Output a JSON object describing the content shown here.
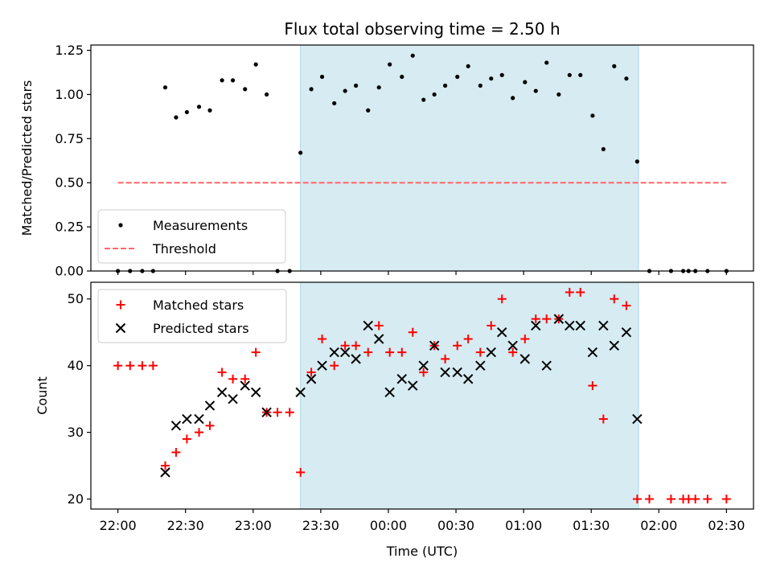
{
  "chart_data": {
    "title": "Flux total observing time = 2.50 h",
    "xlabel": "Time (UTC)",
    "x_units": "minutes after 22:00 UTC",
    "x_range": [
      -20,
      470
    ],
    "x_ticks": [
      {
        "value": 0,
        "label": "22:00"
      },
      {
        "value": 50,
        "label": "22:30"
      },
      {
        "value": 100,
        "label": "23:00"
      },
      {
        "value": 150,
        "label": "23:30"
      },
      {
        "value": 200,
        "label": "00:00"
      },
      {
        "value": 250,
        "label": "00:30"
      },
      {
        "value": 300,
        "label": "01:00"
      },
      {
        "value": 350,
        "label": "01:30"
      },
      {
        "value": 400,
        "label": "02:00"
      },
      {
        "value": 450,
        "label": "02:30"
      }
    ],
    "highlight_span": {
      "x": [
        135,
        385
      ],
      "color": "#add8e6"
    },
    "top": {
      "type": "scatter",
      "ylabel": "Matched/Predicted stars",
      "ylim": [
        0,
        1.28
      ],
      "yticks": [
        0.0,
        0.25,
        0.5,
        0.75,
        1.0,
        1.25
      ],
      "ytick_labels": [
        "0.00",
        "0.25",
        "0.50",
        "0.75",
        "1.00",
        "1.25"
      ],
      "threshold": {
        "name": "Threshold",
        "y": 0.5,
        "x": [
          0,
          450
        ],
        "color": "#ff6666"
      },
      "measurements": {
        "name": "Measurements",
        "color": "#000000",
        "points": [
          [
            0,
            0
          ],
          [
            9,
            0
          ],
          [
            18,
            0
          ],
          [
            26,
            0
          ],
          [
            35,
            1.04
          ],
          [
            43,
            0.87
          ],
          [
            51,
            0.9
          ],
          [
            60,
            0.93
          ],
          [
            68,
            0.91
          ],
          [
            77,
            1.08
          ],
          [
            85,
            1.08
          ],
          [
            94,
            1.03
          ],
          [
            102,
            1.17
          ],
          [
            110,
            1.0
          ],
          [
            118,
            0
          ],
          [
            127,
            0
          ],
          [
            135,
            0.67
          ],
          [
            143,
            1.03
          ],
          [
            151,
            1.1
          ],
          [
            160,
            0.95
          ],
          [
            168,
            1.02
          ],
          [
            176,
            1.05
          ],
          [
            185,
            0.91
          ],
          [
            193,
            1.04
          ],
          [
            201,
            1.17
          ],
          [
            210,
            1.1
          ],
          [
            218,
            1.22
          ],
          [
            226,
            0.97
          ],
          [
            234,
            1.0
          ],
          [
            242,
            1.05
          ],
          [
            251,
            1.1
          ],
          [
            259,
            1.16
          ],
          [
            268,
            1.05
          ],
          [
            276,
            1.09
          ],
          [
            284,
            1.11
          ],
          [
            292,
            0.98
          ],
          [
            301,
            1.07
          ],
          [
            309,
            1.02
          ],
          [
            317,
            1.18
          ],
          [
            326,
            1.0
          ],
          [
            334,
            1.11
          ],
          [
            342,
            1.11
          ],
          [
            351,
            0.88
          ],
          [
            359,
            0.69
          ],
          [
            367,
            1.16
          ],
          [
            376,
            1.09
          ],
          [
            384,
            0.62
          ],
          [
            393,
            0
          ],
          [
            409,
            0
          ],
          [
            418,
            0
          ],
          [
            422,
            0
          ],
          [
            427,
            0
          ],
          [
            436,
            0
          ],
          [
            450,
            0
          ]
        ]
      },
      "legend_position": "lower-left"
    },
    "bottom": {
      "type": "scatter",
      "ylabel": "Count",
      "ylim": [
        18.5,
        52.5
      ],
      "yticks": [
        20,
        30,
        40,
        50
      ],
      "ytick_labels": [
        "20",
        "30",
        "40",
        "50"
      ],
      "series": [
        {
          "name": "Matched stars",
          "marker": "plus",
          "color": "#ff0000",
          "points": [
            [
              0,
              40
            ],
            [
              9,
              40
            ],
            [
              18,
              40
            ],
            [
              26,
              40
            ],
            [
              35,
              25
            ],
            [
              43,
              27
            ],
            [
              51,
              29
            ],
            [
              60,
              30
            ],
            [
              68,
              31
            ],
            [
              77,
              39
            ],
            [
              85,
              38
            ],
            [
              94,
              38
            ],
            [
              102,
              42
            ],
            [
              110,
              33
            ],
            [
              118,
              33
            ],
            [
              127,
              33
            ],
            [
              135,
              24
            ],
            [
              143,
              39
            ],
            [
              151,
              44
            ],
            [
              160,
              40
            ],
            [
              168,
              43
            ],
            [
              176,
              43
            ],
            [
              185,
              42
            ],
            [
              193,
              46
            ],
            [
              201,
              42
            ],
            [
              210,
              42
            ],
            [
              218,
              45
            ],
            [
              226,
              39
            ],
            [
              234,
              43
            ],
            [
              242,
              41
            ],
            [
              251,
              43
            ],
            [
              259,
              44
            ],
            [
              268,
              42
            ],
            [
              276,
              46
            ],
            [
              284,
              50
            ],
            [
              292,
              42
            ],
            [
              301,
              44
            ],
            [
              309,
              47
            ],
            [
              317,
              47
            ],
            [
              326,
              47
            ],
            [
              334,
              51
            ],
            [
              342,
              51
            ],
            [
              351,
              37
            ],
            [
              359,
              32
            ],
            [
              367,
              50
            ],
            [
              376,
              49
            ],
            [
              384,
              20
            ],
            [
              393,
              20
            ],
            [
              409,
              20
            ],
            [
              418,
              20
            ],
            [
              422,
              20
            ],
            [
              427,
              20
            ],
            [
              436,
              20
            ],
            [
              450,
              20
            ]
          ]
        },
        {
          "name": "Predicted stars",
          "marker": "cross",
          "color": "#000000",
          "points": [
            [
              35,
              24
            ],
            [
              43,
              31
            ],
            [
              51,
              32
            ],
            [
              60,
              32
            ],
            [
              68,
              34
            ],
            [
              77,
              36
            ],
            [
              85,
              35
            ],
            [
              94,
              37
            ],
            [
              102,
              36
            ],
            [
              110,
              33
            ],
            [
              135,
              36
            ],
            [
              143,
              38
            ],
            [
              151,
              40
            ],
            [
              160,
              42
            ],
            [
              168,
              42
            ],
            [
              176,
              41
            ],
            [
              185,
              46
            ],
            [
              193,
              44
            ],
            [
              201,
              36
            ],
            [
              210,
              38
            ],
            [
              218,
              37
            ],
            [
              226,
              40
            ],
            [
              234,
              43
            ],
            [
              242,
              39
            ],
            [
              251,
              39
            ],
            [
              259,
              38
            ],
            [
              268,
              40
            ],
            [
              276,
              42
            ],
            [
              284,
              45
            ],
            [
              292,
              43
            ],
            [
              301,
              41
            ],
            [
              309,
              46
            ],
            [
              317,
              40
            ],
            [
              326,
              47
            ],
            [
              334,
              46
            ],
            [
              342,
              46
            ],
            [
              351,
              42
            ],
            [
              359,
              46
            ],
            [
              367,
              43
            ],
            [
              376,
              45
            ],
            [
              384,
              32
            ]
          ]
        }
      ],
      "legend_position": "upper-left"
    }
  }
}
